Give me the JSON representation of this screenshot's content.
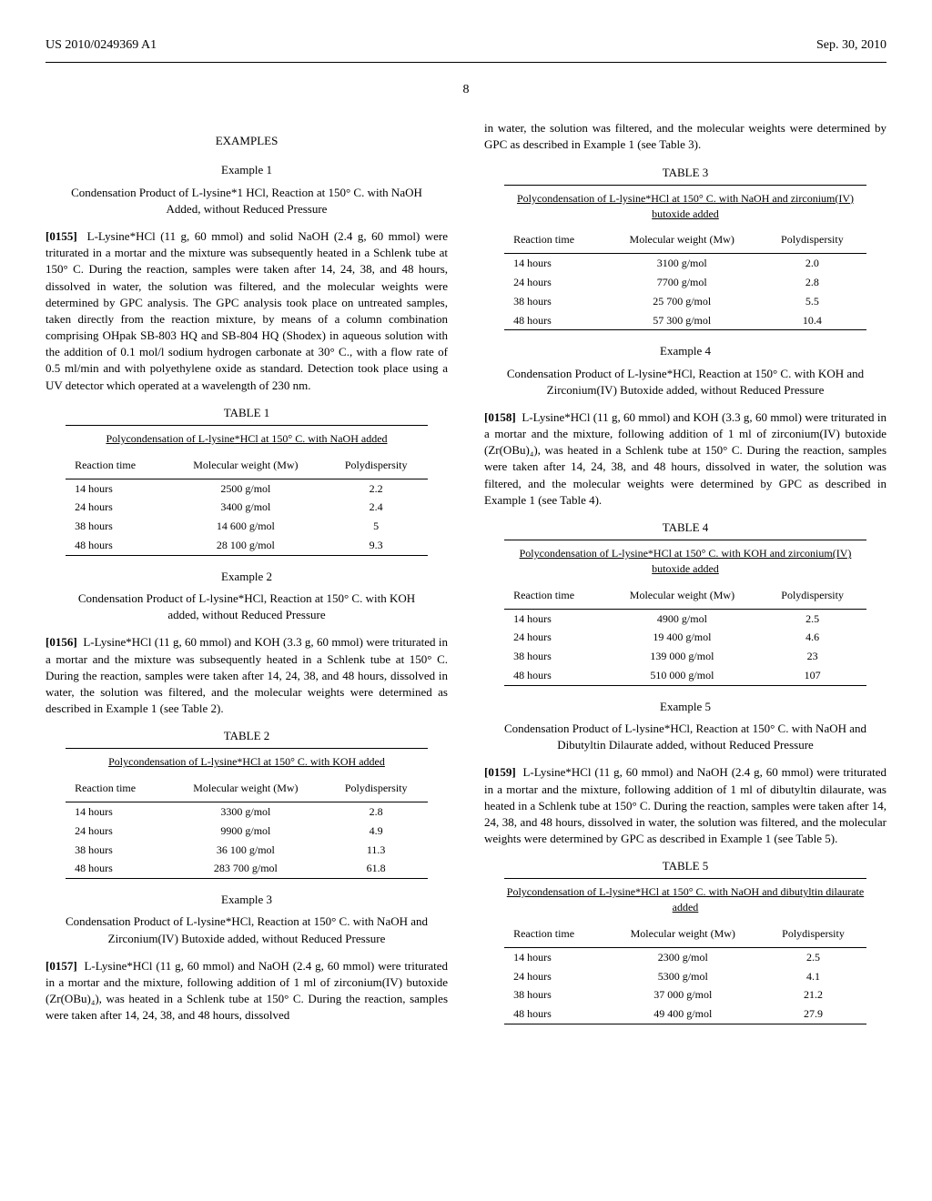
{
  "header": {
    "patent_id": "US 2010/0249369 A1",
    "date": "Sep. 30, 2010",
    "page": "8"
  },
  "left": {
    "examples_heading": "EXAMPLES",
    "ex1": {
      "num": "Example 1",
      "title": "Condensation Product of L-lysine*1 HCl, Reaction at 150° C. with NaOH Added, without Reduced Pressure",
      "para_num": "[0155]",
      "para": "L-Lysine*HCl (11 g, 60 mmol) and solid NaOH (2.4 g, 60 mmol) were triturated in a mortar and the mixture was subsequently heated in a Schlenk tube at 150° C. During the reaction, samples were taken after 14, 24, 38, and 48 hours, dissolved in water, the solution was filtered, and the molecular weights were determined by GPC analysis. The GPC analysis took place on untreated samples, taken directly from the reaction mixture, by means of a column combination comprising OHpak SB-803 HQ and SB-804 HQ (Shodex) in aqueous solution with the addition of 0.1 mol/l sodium hydrogen carbonate at 30° C., with a flow rate of 0.5 ml/min and with polyethylene oxide as standard. Detection took place using a UV detector which operated at a wavelength of 230 nm."
    },
    "table1": {
      "label": "TABLE 1",
      "caption": "Polycondensation of L-lysine*HCl at 150° C. with NaOH added",
      "columns": [
        "Reaction time",
        "Molecular weight (Mw)",
        "Polydispersity"
      ],
      "rows": [
        [
          "14 hours",
          "2500 g/mol",
          "2.2"
        ],
        [
          "24 hours",
          "3400 g/mol",
          "2.4"
        ],
        [
          "38 hours",
          "14 600 g/mol",
          "5"
        ],
        [
          "48 hours",
          "28 100 g/mol",
          "9.3"
        ]
      ]
    },
    "ex2": {
      "num": "Example 2",
      "title": "Condensation Product of L-lysine*HCl, Reaction at 150° C. with KOH added, without Reduced Pressure",
      "para_num": "[0156]",
      "para": "L-Lysine*HCl (11 g, 60 mmol) and KOH (3.3 g, 60 mmol) were triturated in a mortar and the mixture was subsequently heated in a Schlenk tube at 150° C. During the reaction, samples were taken after 14, 24, 38, and 48 hours, dissolved in water, the solution was filtered, and the molecular weights were determined as described in Example 1 (see Table 2)."
    },
    "table2": {
      "label": "TABLE 2",
      "caption": "Polycondensation of L-lysine*HCl at 150° C. with KOH added",
      "columns": [
        "Reaction time",
        "Molecular weight (Mw)",
        "Polydispersity"
      ],
      "rows": [
        [
          "14 hours",
          "3300 g/mol",
          "2.8"
        ],
        [
          "24 hours",
          "9900 g/mol",
          "4.9"
        ],
        [
          "38 hours",
          "36 100 g/mol",
          "11.3"
        ],
        [
          "48 hours",
          "283 700 g/mol",
          "61.8"
        ]
      ]
    },
    "ex3": {
      "num": "Example 3",
      "title": "Condensation Product of L-lysine*HCl, Reaction at 150° C. with NaOH and Zirconium(IV) Butoxide added, without Reduced Pressure",
      "para_num": "[0157]",
      "para": "L-Lysine*HCl (11 g, 60 mmol) and NaOH (2.4 g, 60 mmol) were triturated in a mortar and the mixture, following addition of 1 ml of zirconium(IV) butoxide (Zr(OBu)₄), was heated in a Schlenk tube at 150° C. During the reaction, samples were taken after 14, 24, 38, and 48 hours, dissolved"
    }
  },
  "right": {
    "cont_para": "in water, the solution was filtered, and the molecular weights were determined by GPC as described in Example 1 (see Table 3).",
    "table3": {
      "label": "TABLE 3",
      "caption": "Polycondensation of L-lysine*HCl at 150° C. with NaOH and zirconium(IV) butoxide added",
      "columns": [
        "Reaction time",
        "Molecular weight (Mw)",
        "Polydispersity"
      ],
      "rows": [
        [
          "14 hours",
          "3100 g/mol",
          "2.0"
        ],
        [
          "24 hours",
          "7700 g/mol",
          "2.8"
        ],
        [
          "38 hours",
          "25 700 g/mol",
          "5.5"
        ],
        [
          "48 hours",
          "57 300 g/mol",
          "10.4"
        ]
      ]
    },
    "ex4": {
      "num": "Example 4",
      "title": "Condensation Product of L-lysine*HCl, Reaction at 150° C. with KOH and Zirconium(IV) Butoxide added, without Reduced Pressure",
      "para_num": "[0158]",
      "para": "L-Lysine*HCl (11 g, 60 mmol) and KOH (3.3 g, 60 mmol) were triturated in a mortar and the mixture, following addition of 1 ml of zirconium(IV) butoxide (Zr(OBu)₄), was heated in a Schlenk tube at 150° C. During the reaction, samples were taken after 14, 24, 38, and 48 hours, dissolved in water, the solution was filtered, and the molecular weights were determined by GPC as described in Example 1 (see Table 4)."
    },
    "table4": {
      "label": "TABLE 4",
      "caption": "Polycondensation of L-lysine*HCl at 150° C. with KOH and zirconium(IV) butoxide added",
      "columns": [
        "Reaction time",
        "Molecular weight (Mw)",
        "Polydispersity"
      ],
      "rows": [
        [
          "14 hours",
          "4900 g/mol",
          "2.5"
        ],
        [
          "24 hours",
          "19 400 g/mol",
          "4.6"
        ],
        [
          "38 hours",
          "139 000 g/mol",
          "23"
        ],
        [
          "48 hours",
          "510 000 g/mol",
          "107"
        ]
      ]
    },
    "ex5": {
      "num": "Example 5",
      "title": "Condensation Product of L-lysine*HCl, Reaction at 150° C. with NaOH and Dibutyltin Dilaurate added, without Reduced Pressure",
      "para_num": "[0159]",
      "para": "L-Lysine*HCl (11 g, 60 mmol) and NaOH (2.4 g, 60 mmol) were triturated in a mortar and the mixture, following addition of 1 ml of dibutyltin dilaurate, was heated in a Schlenk tube at 150° C. During the reaction, samples were taken after 14, 24, 38, and 48 hours, dissolved in water, the solution was filtered, and the molecular weights were determined by GPC as described in Example 1 (see Table 5)."
    },
    "table5": {
      "label": "TABLE 5",
      "caption": "Polycondensation of L-lysine*HCl at 150° C. with NaOH and dibutyltin dilaurate added",
      "columns": [
        "Reaction time",
        "Molecular weight (Mw)",
        "Polydispersity"
      ],
      "rows": [
        [
          "14 hours",
          "2300 g/mol",
          "2.5"
        ],
        [
          "24 hours",
          "5300 g/mol",
          "4.1"
        ],
        [
          "38 hours",
          "37 000 g/mol",
          "21.2"
        ],
        [
          "48 hours",
          "49 400 g/mol",
          "27.9"
        ]
      ]
    }
  }
}
